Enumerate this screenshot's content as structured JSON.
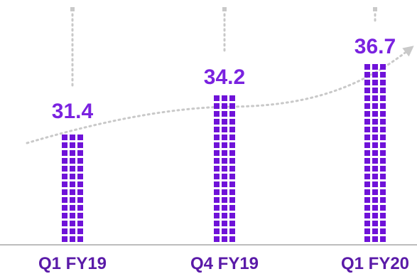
{
  "chart_data": {
    "type": "bar",
    "categories": [
      "Q1 FY19",
      "Q4 FY19",
      "Q1 FY20"
    ],
    "values": [
      31.4,
      34.2,
      36.7
    ],
    "value_labels": [
      "31.4",
      "34.2",
      "36.7"
    ],
    "title": "",
    "xlabel": "",
    "ylabel": "",
    "grid": false,
    "legend": "none",
    "trend_line": "dotted, rising across the bars"
  },
  "colors": {
    "bar": "#6f12d9",
    "value_label": "#7a22e0",
    "category_label": "#5a1aa8",
    "baseline": "#bdbdbd",
    "dotted_line": "#c9c9c9"
  }
}
